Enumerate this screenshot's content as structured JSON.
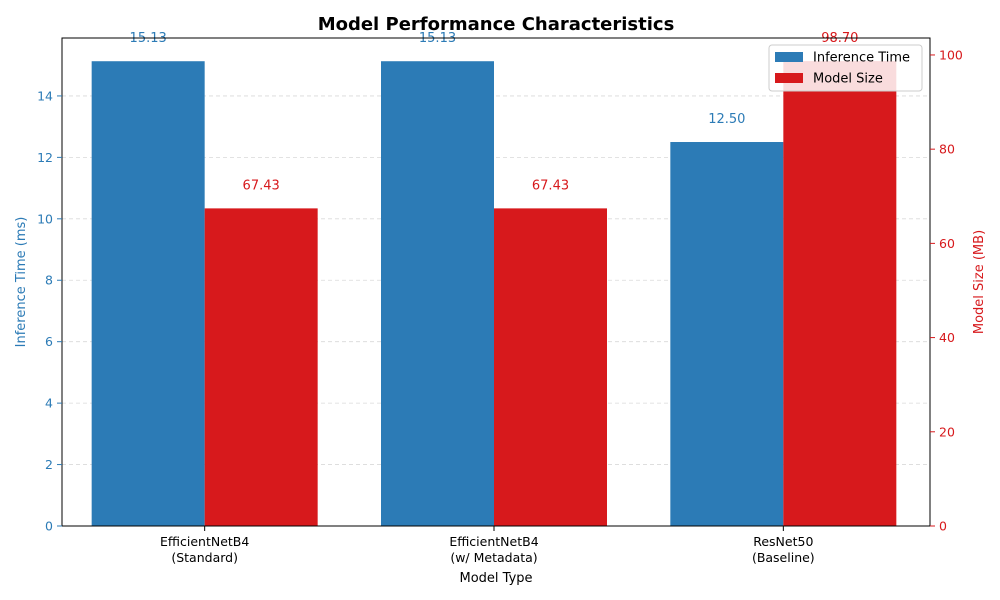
{
  "chart_data": {
    "type": "bar",
    "title": "Model Performance Characteristics",
    "xlabel": "Model Type",
    "categories": [
      [
        "EfficientNetB4",
        "(Standard)"
      ],
      [
        "EfficientNetB4",
        "(w/ Metadata)"
      ],
      [
        "ResNet50",
        "(Baseline)"
      ]
    ],
    "series": [
      {
        "name": "Inference Time",
        "axis": "left",
        "color": "#2c7bb6",
        "values": [
          15.13,
          15.13,
          12.5
        ],
        "labels": [
          "15.13",
          "15.13",
          "12.50"
        ]
      },
      {
        "name": "Model Size",
        "axis": "right",
        "color": "#d7191c",
        "values": [
          67.43,
          67.43,
          98.7
        ],
        "labels": [
          "67.43",
          "67.43",
          "98.70"
        ]
      }
    ],
    "y_left": {
      "label": "Inference Time (ms)",
      "lim": [
        0,
        15.886
      ],
      "ticks": [
        0,
        2,
        4,
        6,
        8,
        10,
        12,
        14
      ],
      "color": "#2c7bb6"
    },
    "y_right": {
      "label": "Model Size (MB)",
      "lim": [
        0,
        103.6
      ],
      "ticks": [
        0,
        20,
        40,
        60,
        80,
        100
      ],
      "color": "#d7191c"
    },
    "grid": "horizontal-dashed",
    "legend": {
      "placement": "top-right",
      "entries": [
        "Inference Time",
        "Model Size"
      ]
    }
  }
}
